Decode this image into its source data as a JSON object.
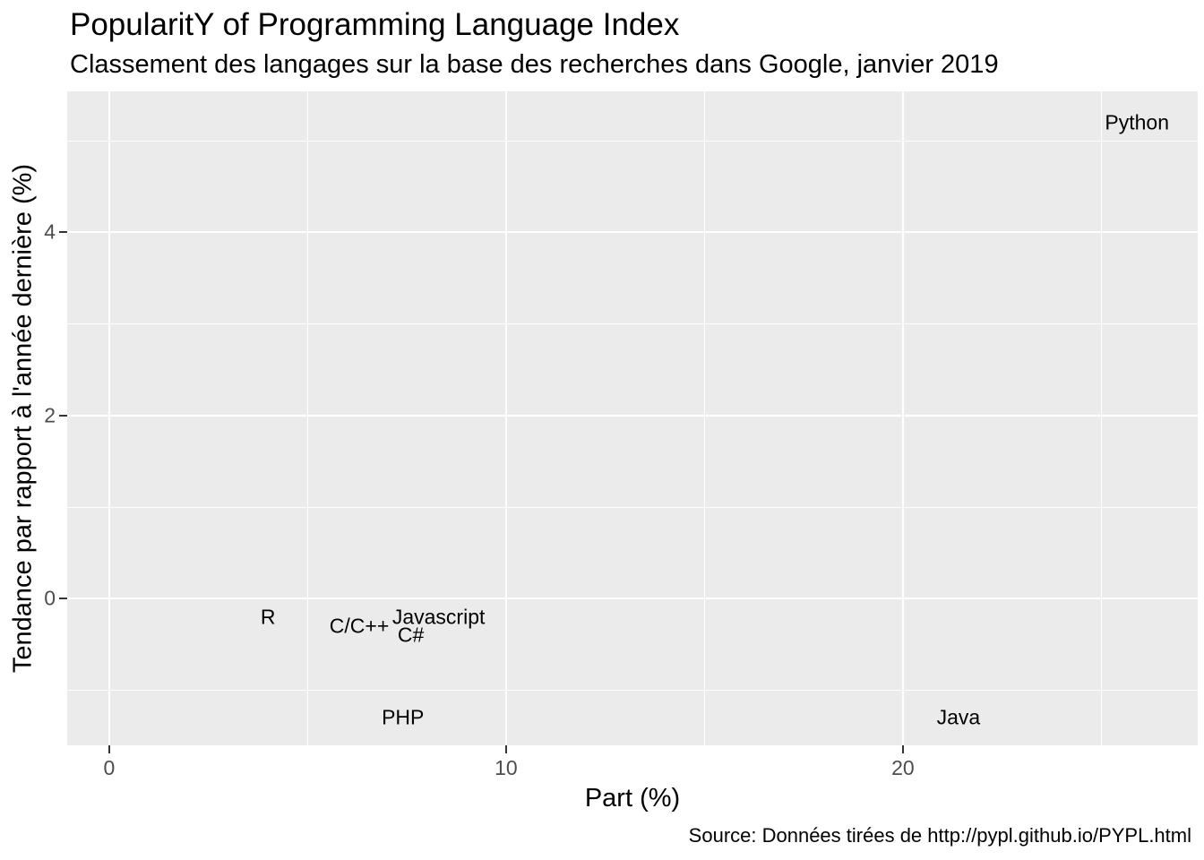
{
  "chart_data": {
    "type": "scatter",
    "title": "PopularitY of Programming Language Index",
    "subtitle": "Classement des langages sur la base des recherches dans Google, janvier 2019",
    "xlabel": "Part (%)",
    "ylabel": "Tendance par rapport à l'année dernière (%)",
    "caption": "Source: Données tirées de http://pypl.github.io/PYPL.html",
    "points": [
      {
        "label": "Python",
        "x": 25.9,
        "y": 5.2
      },
      {
        "label": "Java",
        "x": 21.4,
        "y": -1.3
      },
      {
        "label": "Javascript",
        "x": 8.3,
        "y": -0.2
      },
      {
        "label": "C#",
        "x": 7.6,
        "y": -0.4
      },
      {
        "label": "PHP",
        "x": 7.4,
        "y": -1.3
      },
      {
        "label": "C/C++",
        "x": 6.3,
        "y": -0.3
      },
      {
        "label": "R",
        "x": 4.0,
        "y": -0.2
      }
    ],
    "xlim": [
      -1.06,
      27.43
    ],
    "ylim": [
      -1.6,
      5.54
    ],
    "x_breaks": [
      0,
      10,
      20
    ],
    "x_minor_breaks": [
      5,
      15,
      25
    ],
    "y_breaks": [
      0,
      2,
      4
    ],
    "y_minor_breaks": [
      -1,
      1,
      3,
      5
    ],
    "grid": true,
    "legend": "none",
    "style": {
      "panel_bg": "#EBEBEB",
      "grid_color": "#FFFFFF",
      "tick_mark_color": "#333333",
      "tick_label_color": "#4D4D4D",
      "text_color": "#000000"
    }
  }
}
